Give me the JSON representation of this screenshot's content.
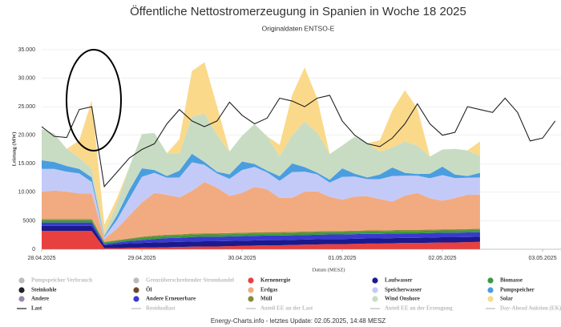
{
  "chart_data": {
    "type": "area",
    "title": "Öffentliche Nettostromerzeugung in Spanien in Woche 18 2025",
    "subtitle": "Originaldaten ENTSO-E",
    "x_label": "Datum (MESZ)",
    "y_label": "Leistung (MW)",
    "footer": "Energy-Charts.info - letztes Update: 02.05.2025, 14:48 MESZ",
    "xlim": [
      0,
      124.4
    ],
    "xticks": [
      {
        "value": 0,
        "label": "28.04.2025"
      },
      {
        "value": 24,
        "label": "29.04.2025"
      },
      {
        "value": 48,
        "label": "30.04.2025"
      },
      {
        "value": 72,
        "label": "01.05.2025"
      },
      {
        "value": 96,
        "label": "02.05.2025"
      },
      {
        "value": 120,
        "label": "03.05.2025"
      }
    ],
    "ylim": [
      0,
      35000
    ],
    "yticks": [
      0,
      5000,
      {
        "value": 10000,
        "label": "10.000"
      },
      {
        "value": 15000,
        "label": "15.000"
      },
      {
        "value": 20000,
        "label": "20.000"
      },
      {
        "value": 25000,
        "label": "25.000"
      },
      {
        "value": 30000,
        "label": "30.000"
      },
      {
        "value": 35000,
        "label": "35.000"
      }
    ],
    "grid": true,
    "x": [
      0,
      3,
      6,
      9,
      12,
      15,
      18,
      21,
      24,
      27,
      30,
      33,
      36,
      39,
      42,
      45,
      48,
      51,
      54,
      57,
      60,
      63,
      66,
      69,
      72,
      75,
      78,
      81,
      84,
      87,
      90,
      93,
      96,
      99,
      102,
      105,
      108,
      111,
      114,
      117,
      120,
      123
    ],
    "series": [
      {
        "name": "Kernenergie",
        "type": "area",
        "color": "#e8403e",
        "values": [
          3200,
          3200,
          3200,
          3200,
          3200,
          200,
          200,
          250,
          300,
          300,
          350,
          400,
          450,
          500,
          500,
          550,
          600,
          650,
          700,
          700,
          750,
          800,
          850,
          900,
          900,
          950,
          1000,
          1000,
          1050,
          1100,
          1100,
          1150,
          1200,
          1200,
          1250,
          1300,
          null,
          null,
          null,
          null,
          null,
          null
        ]
      },
      {
        "name": "Laufwasser",
        "type": "area",
        "color": "#1a1a8c",
        "values": [
          900,
          900,
          900,
          900,
          900,
          500,
          700,
          800,
          800,
          900,
          900,
          900,
          900,
          900,
          900,
          900,
          900,
          900,
          900,
          900,
          900,
          900,
          900,
          900,
          900,
          900,
          900,
          900,
          900,
          900,
          900,
          900,
          900,
          900,
          900,
          900,
          null,
          null,
          null,
          null,
          null,
          null
        ]
      },
      {
        "name": "Andere Erneuerbare",
        "type": "area",
        "color": "#3a3ad0",
        "values": [
          600,
          600,
          600,
          600,
          600,
          200,
          300,
          400,
          500,
          600,
          700,
          700,
          800,
          800,
          800,
          800,
          800,
          800,
          800,
          800,
          800,
          800,
          800,
          800,
          800,
          800,
          800,
          800,
          800,
          800,
          800,
          800,
          800,
          800,
          800,
          800,
          null,
          null,
          null,
          null,
          null,
          null
        ]
      },
      {
        "name": "Biomasse",
        "type": "area",
        "color": "#3c9a3c",
        "values": [
          400,
          400,
          400,
          400,
          400,
          300,
          300,
          300,
          400,
          400,
          400,
          400,
          400,
          400,
          400,
          400,
          400,
          400,
          400,
          400,
          400,
          400,
          400,
          400,
          400,
          400,
          400,
          400,
          400,
          400,
          400,
          400,
          400,
          400,
          400,
          400,
          null,
          null,
          null,
          null,
          null,
          null
        ]
      },
      {
        "name": "Müll",
        "type": "area",
        "color": "#8a8a3c",
        "values": [
          200,
          200,
          200,
          200,
          200,
          100,
          100,
          150,
          200,
          200,
          200,
          200,
          200,
          200,
          200,
          200,
          200,
          200,
          200,
          200,
          200,
          200,
          200,
          200,
          200,
          200,
          200,
          200,
          200,
          200,
          200,
          200,
          200,
          200,
          200,
          200,
          null,
          null,
          null,
          null,
          null,
          null
        ]
      },
      {
        "name": "Erdgas",
        "type": "area",
        "color": "#f2ab80",
        "values": [
          4800,
          5000,
          4800,
          4500,
          4500,
          500,
          2000,
          4000,
          6000,
          7500,
          7000,
          6500,
          7500,
          9000,
          8000,
          6500,
          7000,
          8000,
          7500,
          6000,
          6000,
          7000,
          7000,
          6000,
          5500,
          6000,
          6000,
          5500,
          5000,
          6000,
          6500,
          5500,
          5000,
          5500,
          6000,
          6000,
          null,
          null,
          null,
          null,
          null,
          null
        ]
      },
      {
        "name": "Speicherwasser",
        "type": "area",
        "color": "#c4caf8",
        "values": [
          4000,
          3800,
          3500,
          3500,
          2000,
          300,
          1500,
          3000,
          4500,
          3500,
          3000,
          3500,
          5000,
          3000,
          2500,
          3000,
          4000,
          3500,
          3000,
          3000,
          4500,
          3500,
          3000,
          2500,
          4000,
          3500,
          3000,
          3500,
          4500,
          3500,
          3000,
          3500,
          4500,
          3500,
          3000,
          3000,
          null,
          null,
          null,
          null,
          null,
          null
        ]
      },
      {
        "name": "Pumpspeicher",
        "type": "area",
        "color": "#4a9ee0",
        "values": [
          1500,
          1200,
          1000,
          800,
          800,
          200,
          800,
          1500,
          1500,
          500,
          300,
          1200,
          1500,
          500,
          300,
          800,
          1500,
          500,
          300,
          800,
          1500,
          800,
          300,
          500,
          1500,
          500,
          300,
          800,
          1500,
          500,
          300,
          800,
          1500,
          600,
          300,
          800,
          null,
          null,
          null,
          null,
          null,
          null
        ]
      },
      {
        "name": "Wind Onshore",
        "type": "area",
        "color": "#c8dcc4",
        "values": [
          5500,
          5000,
          3000,
          2000,
          1500,
          500,
          2000,
          4000,
          6000,
          6500,
          4000,
          3000,
          6500,
          8500,
          6500,
          4000,
          4500,
          7000,
          6000,
          3500,
          5000,
          8000,
          7000,
          4500,
          4000,
          6500,
          6000,
          4000,
          3500,
          5500,
          5000,
          3000,
          3000,
          4500,
          4500,
          3000,
          null,
          null,
          null,
          null,
          null,
          null
        ]
      },
      {
        "name": "Solar",
        "type": "area",
        "color": "#fad98a",
        "values": [
          0,
          0,
          0,
          3000,
          12000,
          1500,
          1000,
          0,
          0,
          0,
          0,
          2500,
          8000,
          9000,
          5000,
          0,
          0,
          0,
          0,
          2000,
          7000,
          9500,
          6000,
          0,
          0,
          0,
          0,
          2000,
          6500,
          9000,
          6500,
          0,
          0,
          0,
          0,
          2500,
          null,
          null,
          null,
          null,
          null,
          null
        ]
      },
      {
        "name": "Last",
        "type": "line",
        "color": "#222222",
        "values": [
          21500,
          19800,
          19600,
          24500,
          25000,
          11000,
          13500,
          16000,
          17500,
          18500,
          22000,
          24500,
          22500,
          21500,
          22500,
          25800,
          23500,
          22000,
          23000,
          26500,
          26000,
          25000,
          26500,
          27000,
          22500,
          20000,
          18500,
          18000,
          19500,
          22000,
          25500,
          22000,
          20000,
          20500,
          25000,
          24500,
          24000,
          26500,
          24000,
          19000,
          19500,
          22500
        ]
      }
    ],
    "legend": [
      {
        "name": "Pumpspeicher Verbrauch",
        "inactive": true
      },
      {
        "name": "Grenzüberschreitender Stromhandel",
        "inactive": true
      },
      {
        "name": "Kernenergie"
      },
      {
        "name": "Laufwasser"
      },
      {
        "name": "Biomasse"
      },
      {
        "name": "Steinkohle",
        "color": "#222222"
      },
      {
        "name": "Öl",
        "color": "#6b4a2b"
      },
      {
        "name": "Erdgas"
      },
      {
        "name": "Speicherwasser"
      },
      {
        "name": "Pumpspeicher"
      },
      {
        "name": "Andere",
        "color": "#9a8aaa"
      },
      {
        "name": "Andere Erneuerbare"
      },
      {
        "name": "Müll"
      },
      {
        "name": "Wind Onshore"
      },
      {
        "name": "Solar"
      },
      {
        "name": "Last"
      },
      {
        "name": "Residuallast",
        "inactive": true,
        "marker": "line"
      },
      {
        "name": "Anteil EE an der Last",
        "inactive": true,
        "marker": "line"
      },
      {
        "name": "Anteil EE an der Erzeugung",
        "inactive": true,
        "marker": "line"
      },
      {
        "name": "Day-Ahead Auktion (EK)",
        "inactive": true,
        "marker": "line"
      }
    ]
  }
}
